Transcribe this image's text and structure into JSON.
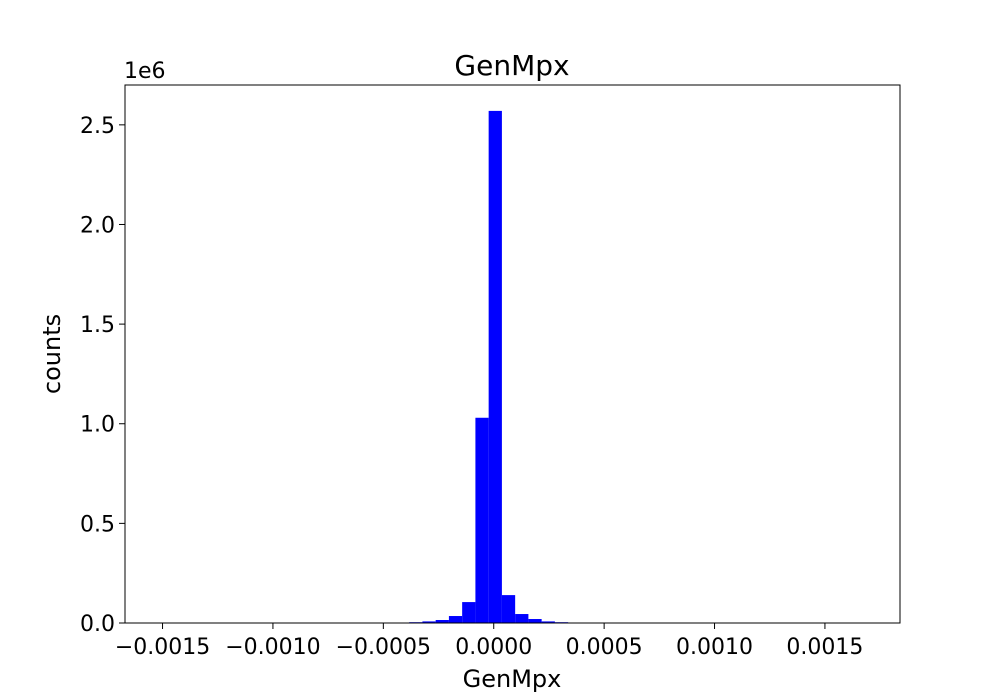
{
  "chart_data": {
    "type": "bar",
    "title": "GenMpx",
    "xlabel": "GenMpx",
    "ylabel": "counts",
    "y_offset_label": "1e6",
    "xlim": [
      -0.00167,
      0.00184
    ],
    "ylim": [
      0,
      2.7
    ],
    "bar_color": "#0000ff",
    "grid": false,
    "x_ticks": [
      -0.0015,
      -0.001,
      -0.0005,
      0.0,
      0.0005,
      0.001,
      0.0015
    ],
    "x_tick_labels": [
      "−0.0015",
      "−0.0010",
      "−0.0005",
      "0.0000",
      "0.0005",
      "0.0010",
      "0.0015"
    ],
    "y_ticks": [
      0,
      0.5,
      1.0,
      1.5,
      2.0,
      2.5
    ],
    "y_tick_labels": [
      "0.0",
      "0.5",
      "1.0",
      "1.5",
      "2.0",
      "2.5"
    ],
    "bin_edges": [
      -0.000383,
      -0.000323,
      -0.000263,
      -0.000203,
      -0.000143,
      -8.3e-05,
      -2.3e-05,
      3.7e-05,
      9.7e-05,
      0.000157,
      0.000217,
      0.000277,
      0.000337,
      0.000397
    ],
    "values": [
      0.004,
      0.008,
      0.015,
      0.035,
      0.105,
      1.03,
      2.57,
      0.14,
      0.045,
      0.02,
      0.008,
      0.004,
      0.002
    ]
  }
}
